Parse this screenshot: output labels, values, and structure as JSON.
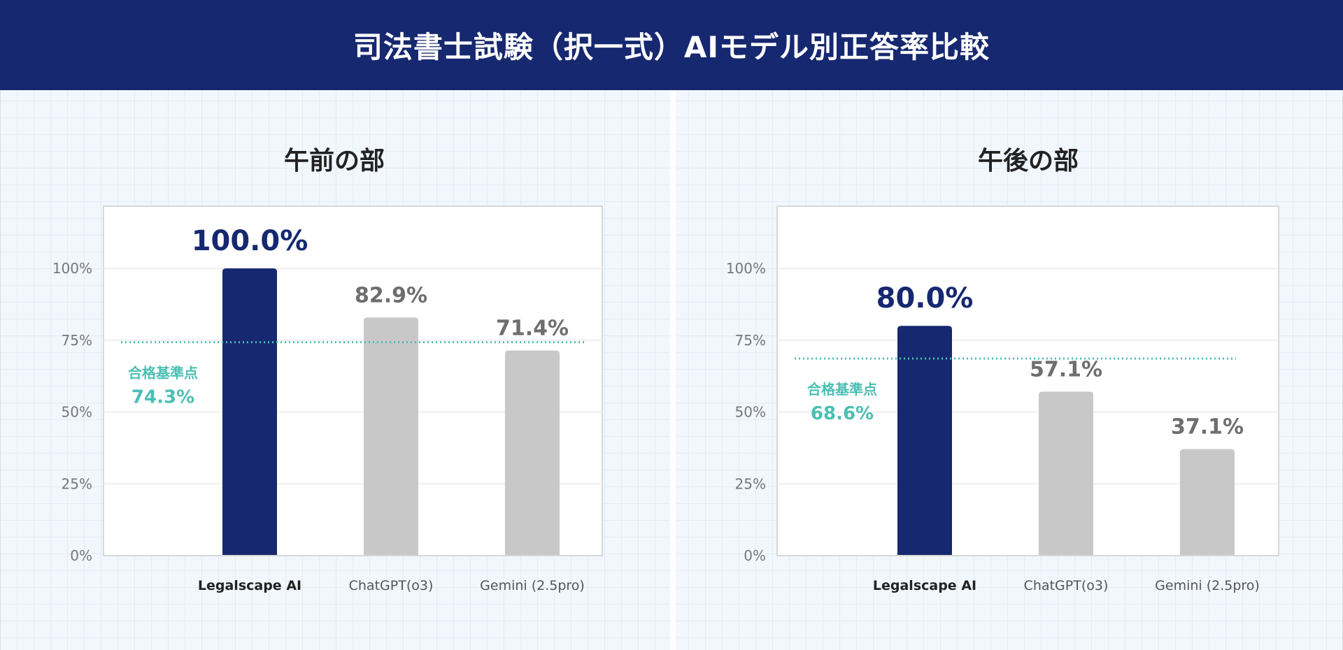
{
  "title": "司法書士試験（択一式）AIモデル別正答率比較",
  "colors": {
    "header": "#16286f",
    "highlight": "#16286f",
    "other": "#c8c8c8",
    "threshold": "#4bbfb4",
    "other_label": "#6e6e6e"
  },
  "chart_data": [
    {
      "type": "bar",
      "title": "午前の部",
      "categories": [
        "Legalscape AI",
        "ChatGPT(o3)",
        "Gemini (2.5pro)"
      ],
      "values": [
        100.0,
        82.9,
        71.4
      ],
      "value_labels": [
        "100.0%",
        "82.9%",
        "71.4%"
      ],
      "yticks": [
        "0%",
        "25%",
        "50%",
        "75%",
        "100%"
      ],
      "ylim": [
        0,
        100
      ],
      "threshold": {
        "label": "合格基準点",
        "value": 74.3,
        "value_label": "74.3%"
      },
      "grid": true
    },
    {
      "type": "bar",
      "title": "午後の部",
      "categories": [
        "Legalscape AI",
        "ChatGPT(o3)",
        "Gemini (2.5pro)"
      ],
      "values": [
        80.0,
        57.1,
        37.1
      ],
      "value_labels": [
        "80.0%",
        "57.1%",
        "37.1%"
      ],
      "yticks": [
        "0%",
        "25%",
        "50%",
        "75%",
        "100%"
      ],
      "ylim": [
        0,
        100
      ],
      "threshold": {
        "label": "合格基準点",
        "value": 68.6,
        "value_label": "68.6%"
      },
      "grid": true
    }
  ]
}
